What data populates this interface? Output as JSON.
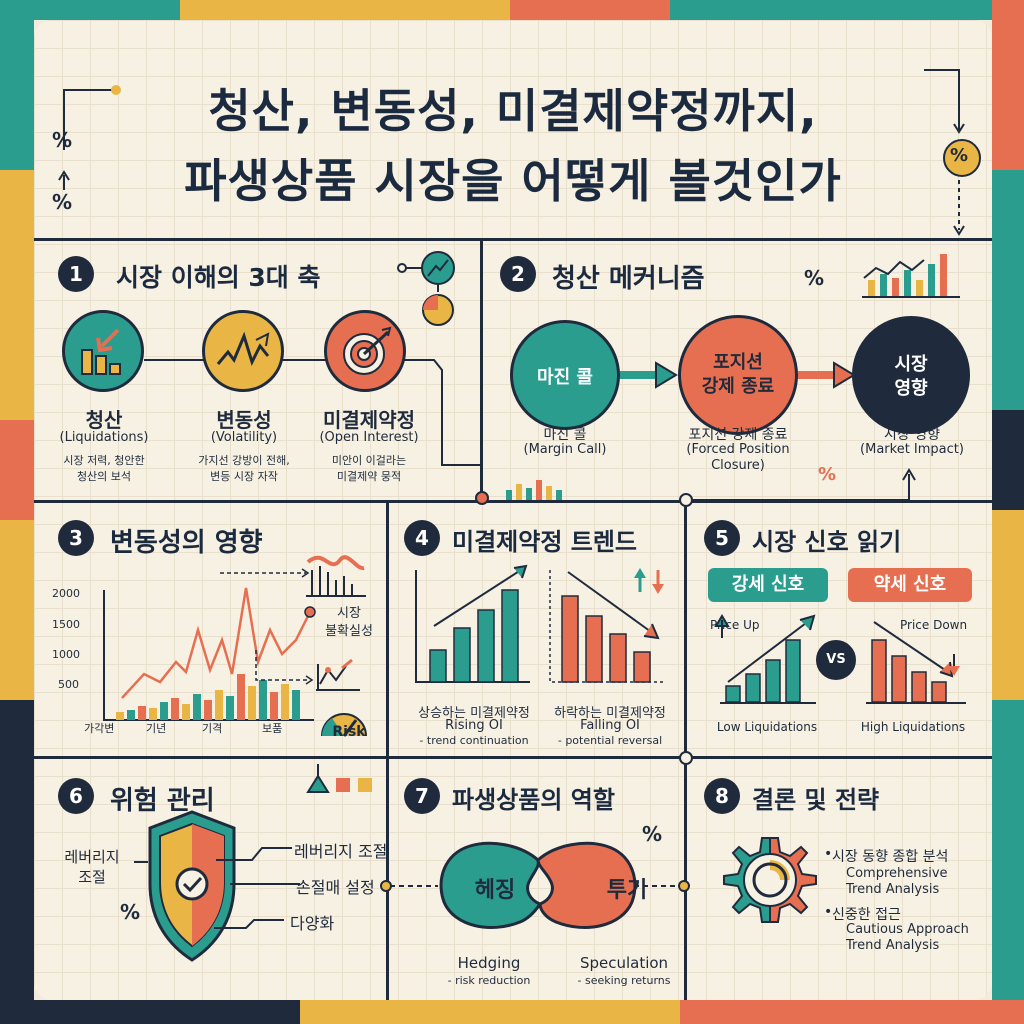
{
  "title": {
    "line1": "청산, 변동성, 미결제약정까지,",
    "line2": "파생상품 시장을 어떻게 볼것인가"
  },
  "colors": {
    "teal": "#2a9d8f",
    "coral": "#e76f51",
    "mustard": "#e9b645",
    "navy": "#1f2b3c",
    "cream": "#f7f1e3"
  },
  "deco": {
    "percent": "%"
  },
  "s1": {
    "num": "1",
    "title": "시장 이해의 3대 축",
    "items": [
      {
        "ko": "청산",
        "en": "(Liquidations)",
        "desc1": "시장 저력, 청안한",
        "desc2": "청산의 보석"
      },
      {
        "ko": "변동성",
        "en": "(Volatility)",
        "desc1": "가지선 강방이 전해,",
        "desc2": "변등 시장 자작"
      },
      {
        "ko": "미결제약정",
        "en": "(Open Interest)",
        "desc1": "미안이 이걸라는",
        "desc2": "미결제약 뭉적"
      }
    ]
  },
  "s2": {
    "num": "2",
    "title": "청산 메커니즘",
    "circles": [
      {
        "label1": "마진 콜",
        "label2": ""
      },
      {
        "label1": "포지션",
        "label2": "강제 종료"
      },
      {
        "label1": "시장",
        "label2": "영향"
      }
    ],
    "captions": [
      {
        "ko": "마진 콜",
        "en": "(Margin Call)",
        "en2": ""
      },
      {
        "ko": "포지션 강제 종료",
        "en": "(Forced Position",
        "en2": "Closure)"
      },
      {
        "ko": "시장 영향",
        "en": "(Market Impact)",
        "en2": ""
      }
    ]
  },
  "s3": {
    "num": "3",
    "title": "변동성의 영향",
    "yticks": [
      "2000",
      "1500",
      "1000",
      "500"
    ],
    "xticks": [
      "가각변",
      "기년",
      "기격",
      "보품"
    ],
    "label_uncertainty1": "시장",
    "label_uncertainty2": "불확실성",
    "label_risk": "Risk"
  },
  "s4": {
    "num": "4",
    "title": "미결제약정 트렌드",
    "rising": {
      "ko": "상승하는 미결제약정",
      "en": "Rising OI",
      "note": "- trend continuation"
    },
    "falling": {
      "ko": "하락하는 미결제약정",
      "en": "Falling OI",
      "note": "- potential reversal"
    }
  },
  "s5": {
    "num": "5",
    "title": "시장 신호 읽기",
    "bull": "강세 신호",
    "bear": "약세 신호",
    "price_up": "Price Up",
    "price_down": "Price Down",
    "vs": "VS",
    "low_liq": "Low Liquidations",
    "high_liq": "High Liquidations"
  },
  "s6": {
    "num": "6",
    "title": "위험 관리",
    "left1": "레버리지",
    "left2": "조절",
    "items": [
      "레버리지 조절",
      "손절매 설정",
      "다양화"
    ]
  },
  "s7": {
    "num": "7",
    "title": "파생상품의 역할",
    "hedge": "헤징",
    "spec": "투기",
    "hedge_en": "Hedging",
    "hedge_note": "- risk reduction",
    "spec_en": "Speculation",
    "spec_note": "- seeking returns"
  },
  "s8": {
    "num": "8",
    "title": "결론 및 전략",
    "b1_ko": "시장 동향 종합 분석",
    "b1_en1": "Comprehensive",
    "b1_en2": "Trend Analysis",
    "b2_ko": "신중한 접근",
    "b2_en1": "Cautious Approach",
    "b2_en2": "Trend Analysis"
  }
}
